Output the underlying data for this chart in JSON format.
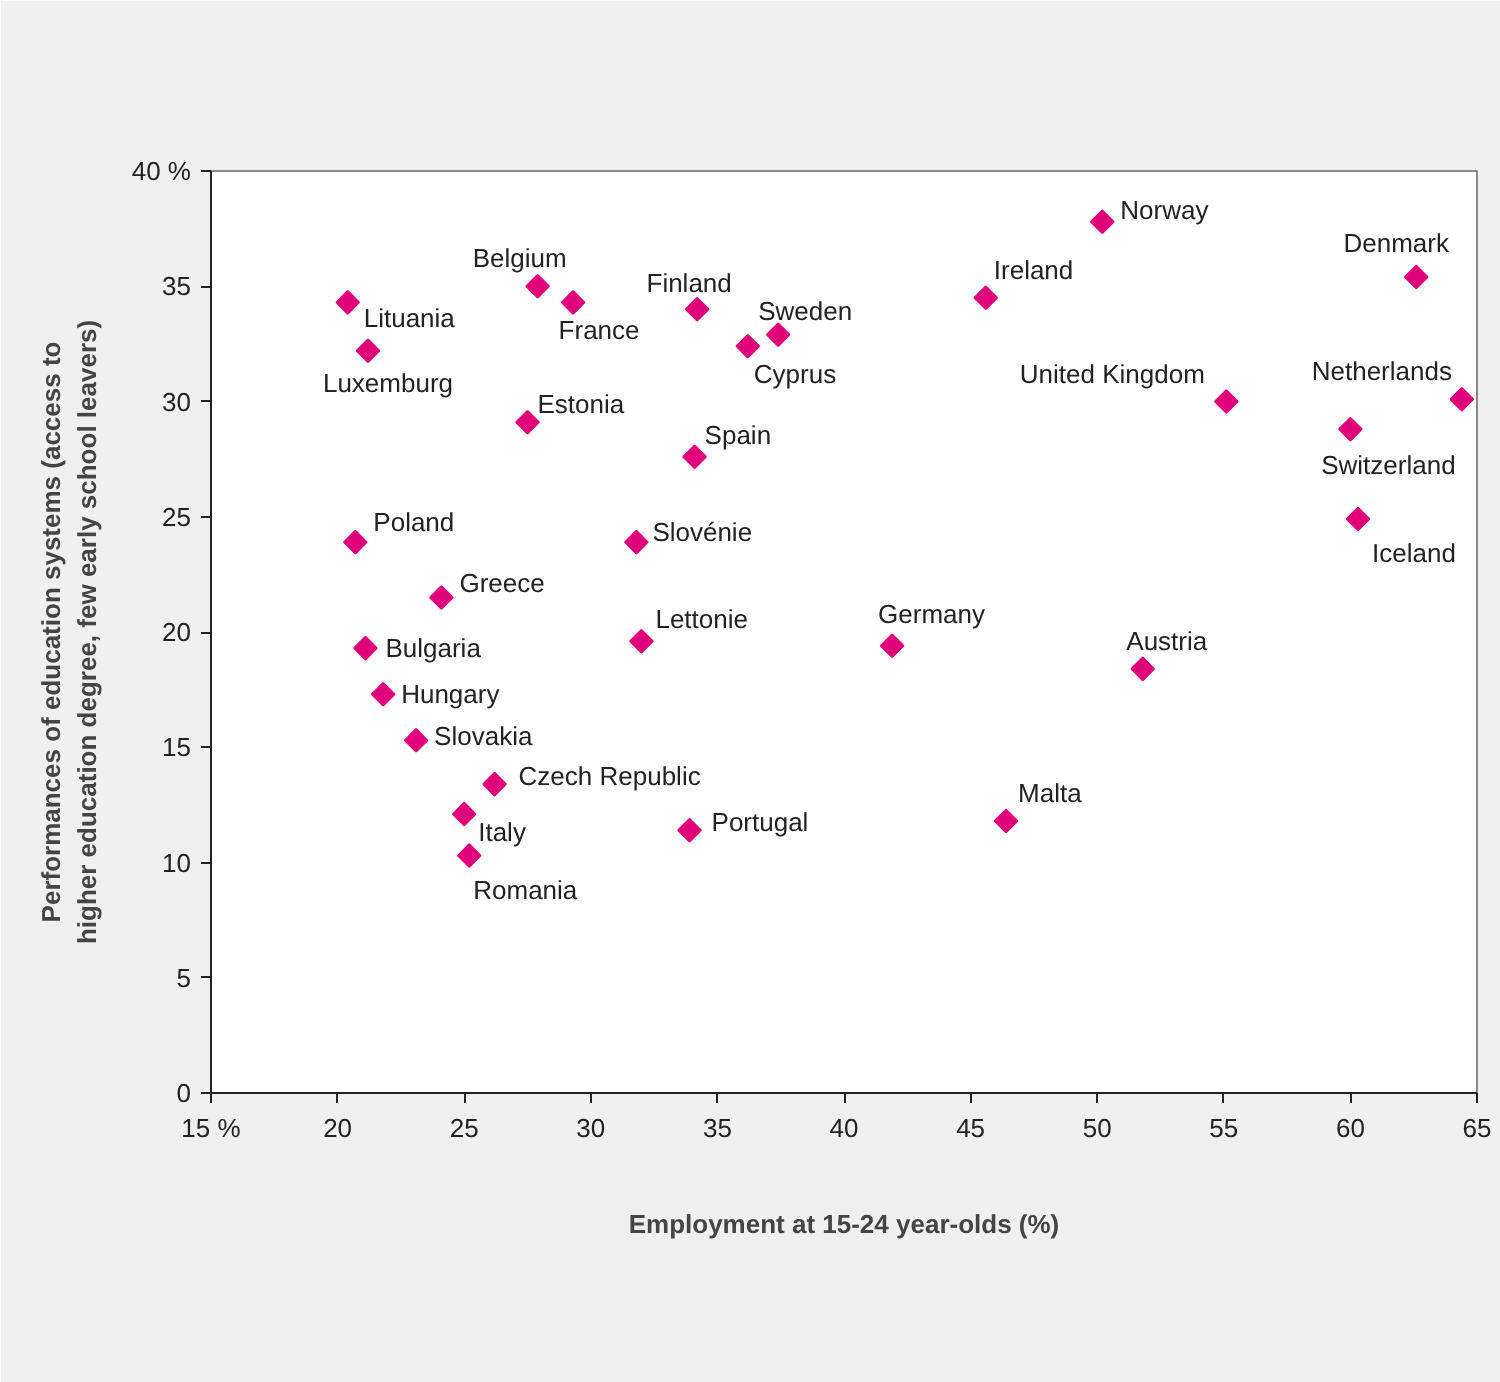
{
  "chart_data": {
    "type": "scatter",
    "xlabel": "Employment at 15-24 year-olds (%)",
    "ylabel": "Performances of education systems (access to higher education degree, few early school leavers)",
    "xlim": [
      15,
      65
    ],
    "ylim": [
      0,
      40
    ],
    "xticks": [
      {
        "value": 15,
        "label": "15 %"
      },
      20,
      25,
      30,
      35,
      40,
      45,
      50,
      55,
      60,
      65
    ],
    "yticks": [
      0,
      5,
      10,
      15,
      20,
      25,
      30,
      35,
      {
        "value": 40,
        "label": "40 %"
      }
    ],
    "grid": false,
    "marker": "diamond",
    "series": [
      {
        "color": "#e0007a",
        "x": [
          20.4,
          21.2,
          27.9,
          29.3,
          34.2,
          37.4,
          36.2,
          27.5,
          34.1,
          20.7,
          31.8,
          24.1,
          32.0,
          21.1,
          21.8,
          23.1,
          26.2,
          25.0,
          25.2,
          33.9,
          41.9,
          46.4,
          51.8,
          50.2,
          45.6,
          62.6,
          55.1,
          64.4,
          60.0,
          60.3
        ],
        "values": [
          34.3,
          32.2,
          35.0,
          34.3,
          34.0,
          32.9,
          32.4,
          29.1,
          27.6,
          23.9,
          23.9,
          21.5,
          19.6,
          19.3,
          17.3,
          15.3,
          13.4,
          12.1,
          10.3,
          11.4,
          19.4,
          11.8,
          18.4,
          37.8,
          34.5,
          35.4,
          30.0,
          30.1,
          28.8,
          24.9
        ]
      }
    ],
    "annotations": [
      {
        "text": "Lituania",
        "x": 20.4,
        "y": 34.3
      },
      {
        "text": "Luxemburg",
        "x": 21.2,
        "y": 32.2
      },
      {
        "text": "Belgium",
        "x": 27.9,
        "y": 35.0
      },
      {
        "text": "France",
        "x": 29.3,
        "y": 34.3
      },
      {
        "text": "Finland",
        "x": 34.2,
        "y": 34.0
      },
      {
        "text": "Sweden",
        "x": 37.4,
        "y": 32.9
      },
      {
        "text": "Cyprus",
        "x": 36.2,
        "y": 32.4
      },
      {
        "text": "Estonia",
        "x": 27.5,
        "y": 29.1
      },
      {
        "text": "Spain",
        "x": 34.1,
        "y": 27.6
      },
      {
        "text": "Poland",
        "x": 20.7,
        "y": 23.9
      },
      {
        "text": "Slovénie",
        "x": 31.8,
        "y": 23.9
      },
      {
        "text": "Greece",
        "x": 24.1,
        "y": 21.5
      },
      {
        "text": "Lettonie",
        "x": 32.0,
        "y": 19.6
      },
      {
        "text": "Bulgaria",
        "x": 21.1,
        "y": 19.3
      },
      {
        "text": "Hungary",
        "x": 21.8,
        "y": 17.3
      },
      {
        "text": "Slovakia",
        "x": 23.1,
        "y": 15.3
      },
      {
        "text": "Czech Republic",
        "x": 26.2,
        "y": 13.4
      },
      {
        "text": "Italy",
        "x": 25.0,
        "y": 12.1
      },
      {
        "text": "Romania",
        "x": 25.2,
        "y": 10.3
      },
      {
        "text": "Portugal",
        "x": 33.9,
        "y": 11.4
      },
      {
        "text": "Germany",
        "x": 41.9,
        "y": 19.4
      },
      {
        "text": "Malta",
        "x": 46.4,
        "y": 11.8
      },
      {
        "text": "Austria",
        "x": 51.8,
        "y": 18.4
      },
      {
        "text": "Norway",
        "x": 50.2,
        "y": 37.8
      },
      {
        "text": "Ireland",
        "x": 45.6,
        "y": 34.5
      },
      {
        "text": "Denmark",
        "x": 62.6,
        "y": 35.4
      },
      {
        "text": "United Kingdom",
        "x": 55.1,
        "y": 30.0
      },
      {
        "text": "Netherlands",
        "x": 64.4,
        "y": 30.1
      },
      {
        "text": "Switzerland",
        "x": 60.0,
        "y": 28.8
      },
      {
        "text": "Iceland",
        "x": 60.3,
        "y": 24.9
      }
    ]
  }
}
